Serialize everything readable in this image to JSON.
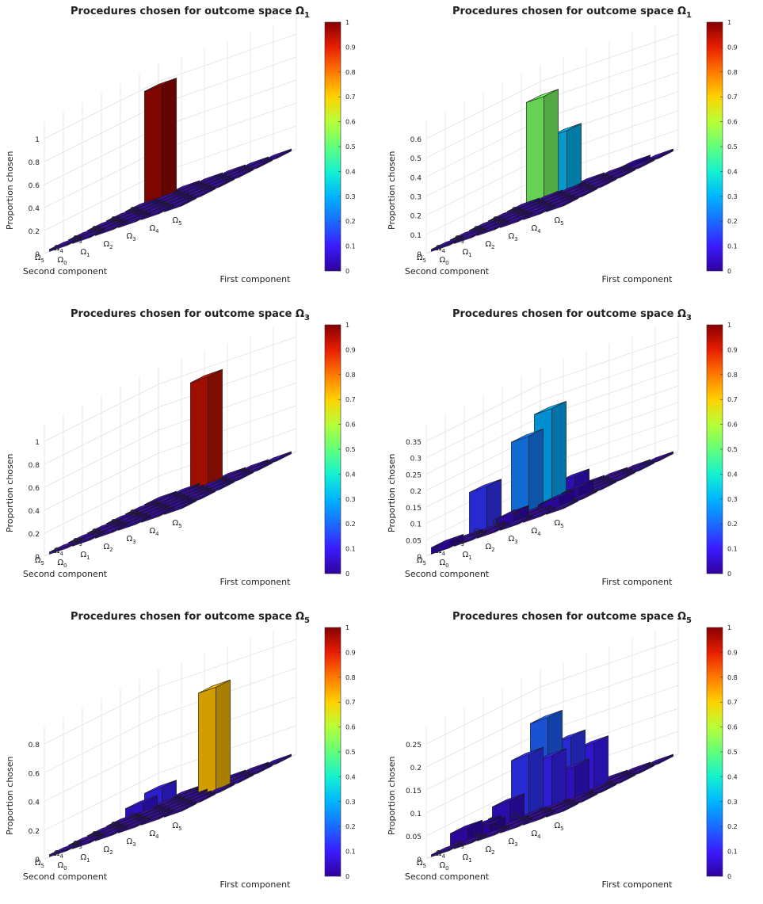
{
  "figure": {
    "colorbar": {
      "ticks": [
        "0",
        "0.1",
        "0.2",
        "0.3",
        "0.4",
        "0.5",
        "0.6",
        "0.7",
        "0.8",
        "0.9",
        "1"
      ],
      "colors": [
        "#30009c",
        "#3a1bff",
        "#1a6bff",
        "#00b5ff",
        "#14f2d0",
        "#62ff7a",
        "#b7ff38",
        "#ffd200",
        "#ff7a00",
        "#e81e00",
        "#860000"
      ]
    },
    "bar_edge": "#1a1a1a",
    "floor_color": "#3b10a8"
  },
  "chart_data": [
    {
      "type": "bar3d",
      "title": "Procedures chosen for outcome space Ω",
      "title_sub": "1",
      "zlabel": "Proportion chosen",
      "xlabel": "First component",
      "ylabel": "Second component",
      "x_categories": [
        "Ω0",
        "Ω1",
        "Ω2",
        "Ω3",
        "Ω4",
        "Ω5"
      ],
      "y_categories": [
        "Ω0",
        "Ω1",
        "Ω2",
        "Ω3",
        "Ω4",
        "Ω5"
      ],
      "zlim": [
        0,
        1
      ],
      "zticks": [
        "0",
        "0.2",
        "0.4",
        "0.6",
        "0.8",
        "1"
      ],
      "bars": [
        {
          "x": 0,
          "y": 0,
          "value": 0.98
        }
      ]
    },
    {
      "type": "bar3d",
      "title": "Procedures chosen for outcome space Ω",
      "title_sub": "1",
      "zlabel": "Proportion chosen",
      "xlabel": "First component",
      "ylabel": "Second component",
      "x_categories": [
        "Ω0",
        "Ω1",
        "Ω2",
        "Ω3",
        "Ω4",
        "Ω5"
      ],
      "y_categories": [
        "Ω0",
        "Ω1",
        "Ω2",
        "Ω3",
        "Ω4",
        "Ω5"
      ],
      "zlim": [
        0,
        0.6
      ],
      "zticks": [
        "0",
        "0.1",
        "0.2",
        "0.3",
        "0.4",
        "0.5",
        "0.6"
      ],
      "bars": [
        {
          "x": 0,
          "y": 0,
          "value": 0.53
        },
        {
          "x": 1,
          "y": 0,
          "value": 0.31
        },
        {
          "x": 4,
          "y": 0,
          "value": 0.02
        }
      ]
    },
    {
      "type": "bar3d",
      "title": "Procedures chosen for outcome space Ω",
      "title_sub": "3",
      "zlabel": "Proportion chosen",
      "xlabel": "First component",
      "ylabel": "Second component",
      "x_categories": [
        "Ω0",
        "Ω1",
        "Ω2",
        "Ω3",
        "Ω4",
        "Ω5"
      ],
      "y_categories": [
        "Ω0",
        "Ω1",
        "Ω2",
        "Ω3",
        "Ω4",
        "Ω5"
      ],
      "zlim": [
        0,
        1
      ],
      "zticks": [
        "0",
        "0.2",
        "0.4",
        "0.6",
        "0.8",
        "1"
      ],
      "bars": [
        {
          "x": 2,
          "y": 0,
          "value": 0.94
        }
      ]
    },
    {
      "type": "bar3d",
      "title": "Procedures chosen for outcome space Ω",
      "title_sub": "3",
      "zlabel": "Proportion chosen",
      "xlabel": "First component",
      "ylabel": "Second component",
      "x_categories": [
        "Ω0",
        "Ω1",
        "Ω2",
        "Ω3",
        "Ω4",
        "Ω5"
      ],
      "y_categories": [
        "Ω0",
        "Ω1",
        "Ω2",
        "Ω3",
        "Ω4",
        "Ω5"
      ],
      "zlim": [
        0,
        0.35
      ],
      "zticks": [
        "0",
        "0.05",
        "0.1",
        "0.15",
        "0.2",
        "0.25",
        "0.3",
        "0.35"
      ],
      "bars": [
        {
          "x": 0,
          "y": 3,
          "value": 0.13
        },
        {
          "x": 0,
          "y": 5,
          "value": 0.02
        },
        {
          "x": 1,
          "y": 2,
          "value": 0.23
        },
        {
          "x": 2,
          "y": 2,
          "value": 0.29
        },
        {
          "x": 2,
          "y": 4,
          "value": 0.03
        },
        {
          "x": 3,
          "y": 3,
          "value": 0.02
        },
        {
          "x": 3,
          "y": 2,
          "value": 0.06
        },
        {
          "x": 4,
          "y": 4,
          "value": 0.03
        },
        {
          "x": 4,
          "y": 3,
          "value": 0.03
        }
      ]
    },
    {
      "type": "bar3d",
      "title": "Procedures chosen for outcome space Ω",
      "title_sub": "5",
      "zlabel": "Proportion chosen",
      "xlabel": "First component",
      "ylabel": "Second component",
      "x_categories": [
        "Ω0",
        "Ω1",
        "Ω2",
        "Ω3",
        "Ω4",
        "Ω5"
      ],
      "y_categories": [
        "Ω0",
        "Ω1",
        "Ω2",
        "Ω3",
        "Ω4",
        "Ω5"
      ],
      "zlim": [
        0,
        0.8
      ],
      "zticks": [
        "0",
        "0.2",
        "0.4",
        "0.6",
        "0.8"
      ],
      "bars": [
        {
          "x": 4,
          "y": 2,
          "value": 0.72
        },
        {
          "x": 0,
          "y": 1,
          "value": 0.07
        },
        {
          "x": 0,
          "y": 0,
          "value": 0.11
        }
      ]
    },
    {
      "type": "bar3d",
      "title": "Procedures chosen for outcome space Ω",
      "title_sub": "5",
      "zlabel": "Proportion chosen",
      "xlabel": "First component",
      "ylabel": "Second component",
      "x_categories": [
        "Ω0",
        "Ω1",
        "Ω2",
        "Ω3",
        "Ω4",
        "Ω5"
      ],
      "y_categories": [
        "Ω0",
        "Ω1",
        "Ω2",
        "Ω3",
        "Ω4",
        "Ω5"
      ],
      "zlim": [
        0,
        0.25
      ],
      "zticks": [
        "0",
        "0.05",
        "0.1",
        "0.15",
        "0.2",
        "0.25"
      ],
      "bars": [
        {
          "x": 1,
          "y": 1,
          "value": 0.19
        },
        {
          "x": 2,
          "y": 1,
          "value": 0.13
        },
        {
          "x": 3,
          "y": 1,
          "value": 0.1
        },
        {
          "x": 1,
          "y": 2,
          "value": 0.13
        },
        {
          "x": 2,
          "y": 2,
          "value": 0.11
        },
        {
          "x": 3,
          "y": 2,
          "value": 0.07
        },
        {
          "x": 1,
          "y": 3,
          "value": 0.05
        },
        {
          "x": 0,
          "y": 4,
          "value": 0.03
        },
        {
          "x": 1,
          "y": 4,
          "value": 0.02
        },
        {
          "x": 0,
          "y": 3,
          "value": 0.02
        },
        {
          "x": 0,
          "y": 2,
          "value": 0.02
        }
      ]
    }
  ]
}
